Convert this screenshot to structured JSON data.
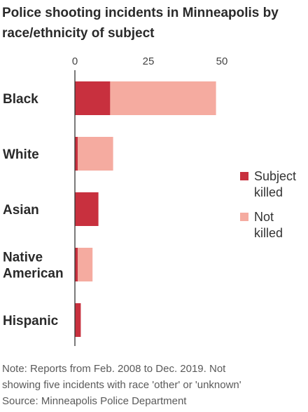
{
  "chart_data": {
    "type": "bar",
    "stacked": true,
    "orientation": "horizontal",
    "title": "Police shooting incidents in Minneapolis by race/ethnicity of subject",
    "categories": [
      "Black",
      "White",
      "Asian",
      "Native American",
      "Hispanic"
    ],
    "series": [
      {
        "name": "Subject killed",
        "values": [
          12,
          1,
          8,
          1,
          2
        ],
        "color": "#c8303e"
      },
      {
        "name": "Not killed",
        "values": [
          36,
          12,
          0,
          5,
          0
        ],
        "color": "#f5aba0"
      }
    ],
    "xticks": [
      0,
      25,
      50
    ],
    "xtick_labels": [
      "0",
      "25",
      "50"
    ],
    "xlim": [
      0,
      52
    ],
    "xlabel": "",
    "ylabel": "",
    "grid": false,
    "legend_position": "right",
    "colors": {
      "axis": "#333333",
      "label": "#2a2a2a",
      "note": "#5a5a5a"
    }
  },
  "notes": [
    "Note: Reports from Feb. 2008 to Dec. 2019. Not",
    "showing five incidents with race 'other' or 'unknown'",
    "Source: Minneapolis Police Department"
  ]
}
